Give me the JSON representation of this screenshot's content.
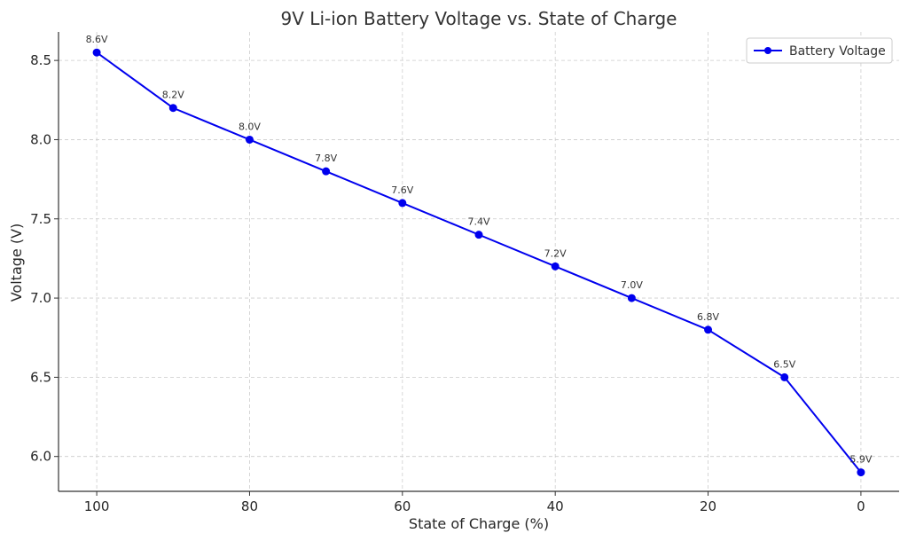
{
  "chart_data": {
    "type": "line",
    "title": "9V Li-ion Battery Voltage vs. State of Charge",
    "xlabel": "State of Charge (%)",
    "ylabel": "Voltage (V)",
    "x_inverted": true,
    "xlim": [
      105,
      -5
    ],
    "ylim": [
      5.78,
      8.68
    ],
    "xticks": [
      100,
      80,
      60,
      40,
      20,
      0
    ],
    "yticks": [
      6.0,
      6.5,
      7.0,
      7.5,
      8.0,
      8.5
    ],
    "ytick_labels": [
      "6.0",
      "6.5",
      "7.0",
      "7.5",
      "8.0",
      "8.5"
    ],
    "grid": true,
    "legend_position": "top-right",
    "series": [
      {
        "name": "Battery Voltage",
        "color": "#0000ee",
        "marker": "circle",
        "x": [
          100,
          90,
          80,
          70,
          60,
          50,
          40,
          30,
          20,
          10,
          0
        ],
        "y": [
          8.55,
          8.2,
          8.0,
          7.8,
          7.6,
          7.4,
          7.2,
          7.0,
          6.8,
          6.5,
          5.9
        ],
        "labels": [
          "8.6V",
          "8.2V",
          "8.0V",
          "7.8V",
          "7.6V",
          "7.4V",
          "7.2V",
          "7.0V",
          "6.8V",
          "6.5V",
          "5.9V"
        ]
      }
    ]
  }
}
